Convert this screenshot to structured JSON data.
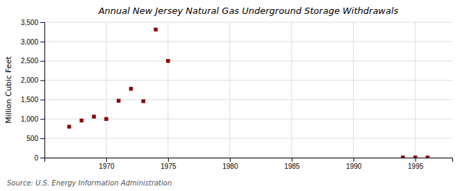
{
  "chart_data": {
    "type": "scatter",
    "title": "Annual New Jersey Natural Gas Underground Storage Withdrawals",
    "ylabel": "Million Cubic Feet",
    "annotations": [
      "Source: U.S. Energy Information Administration"
    ],
    "x": [
      1967,
      1968,
      1969,
      1970,
      1971,
      1972,
      1973,
      1974,
      1975,
      1994,
      1995,
      1996
    ],
    "values": [
      800,
      960,
      1060,
      1000,
      1470,
      1780,
      1460,
      3310,
      2500,
      5,
      5,
      5
    ],
    "color": "#8b0000",
    "marker": "square",
    "xlim": [
      1965,
      1998
    ],
    "ylim": [
      0,
      3500
    ],
    "xticks": [
      1970,
      1975,
      1980,
      1985,
      1990,
      1995
    ],
    "yticks": [
      0,
      500,
      {
        "value": 1000,
        "label": "1,000"
      },
      {
        "value": 1500,
        "label": "1,500"
      },
      {
        "value": 2000,
        "label": "2,000"
      },
      {
        "value": 2500,
        "label": "2,500"
      },
      {
        "value": 3000,
        "label": "3,000"
      },
      {
        "value": 3500,
        "label": "3,500"
      }
    ],
    "grid": true
  }
}
